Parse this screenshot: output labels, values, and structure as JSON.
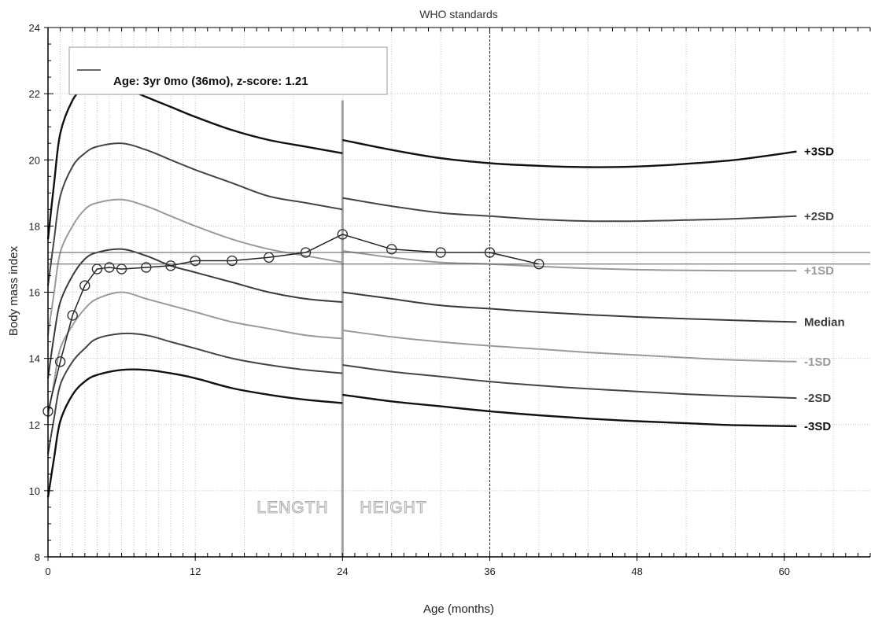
{
  "chart_data": {
    "type": "line",
    "title": "WHO standards",
    "xlabel": "Age (months)",
    "ylabel": "Body mass index",
    "xlim": [
      0,
      67
    ],
    "ylim": [
      8,
      24
    ],
    "xticks": [
      0,
      12,
      24,
      36,
      48,
      60
    ],
    "yticks": [
      8,
      10,
      12,
      14,
      16,
      18,
      20,
      22,
      24
    ],
    "grid": true,
    "legend": {
      "position": "top-left",
      "entries": [
        "Age: 3yr 0mo (36mo), z-score: 1.21"
      ]
    },
    "annotations": {
      "region_left": "LENGTH",
      "region_right": "HEIGHT",
      "divider_x": 24,
      "marker_x": 36
    },
    "reference_curves": [
      {
        "label": "+3SD",
        "color": "#111111",
        "length": {
          "x": [
            0,
            0.5,
            1,
            2,
            3,
            4,
            6,
            8,
            10,
            12,
            15,
            18,
            21,
            24
          ],
          "y": [
            17.6,
            19.3,
            20.8,
            21.8,
            22.2,
            22.3,
            22.2,
            21.9,
            21.6,
            21.3,
            20.9,
            20.6,
            20.4,
            20.2
          ]
        },
        "height": {
          "x": [
            24,
            28,
            32,
            36,
            40,
            44,
            48,
            52,
            56,
            61
          ],
          "y": [
            20.6,
            20.3,
            20.05,
            19.9,
            19.82,
            19.78,
            19.8,
            19.88,
            20.0,
            20.25
          ]
        }
      },
      {
        "label": "+2SD",
        "color": "#444444",
        "length": {
          "x": [
            0,
            0.5,
            1,
            2,
            3,
            4,
            6,
            8,
            10,
            12,
            15,
            18,
            21,
            24
          ],
          "y": [
            16.2,
            17.6,
            18.9,
            19.8,
            20.2,
            20.4,
            20.5,
            20.3,
            20.0,
            19.7,
            19.3,
            18.9,
            18.7,
            18.5
          ]
        },
        "height": {
          "x": [
            24,
            28,
            32,
            36,
            40,
            44,
            48,
            52,
            56,
            61
          ],
          "y": [
            18.85,
            18.6,
            18.4,
            18.3,
            18.2,
            18.15,
            18.15,
            18.18,
            18.22,
            18.3
          ]
        }
      },
      {
        "label": "+1SD",
        "color": "#9a9a9a",
        "length": {
          "x": [
            0,
            0.5,
            1,
            2,
            3,
            4,
            6,
            8,
            10,
            12,
            15,
            18,
            21,
            24
          ],
          "y": [
            14.7,
            16.0,
            17.2,
            18.0,
            18.5,
            18.7,
            18.8,
            18.6,
            18.3,
            18.0,
            17.6,
            17.3,
            17.1,
            16.9
          ]
        },
        "height": {
          "x": [
            24,
            28,
            32,
            36,
            40,
            44,
            48,
            52,
            56,
            61
          ],
          "y": [
            17.25,
            17.05,
            16.9,
            16.85,
            16.78,
            16.72,
            16.68,
            16.66,
            16.65,
            16.65
          ]
        }
      },
      {
        "label": "Median",
        "color": "#3a3a3a",
        "length": {
          "x": [
            0,
            0.5,
            1,
            2,
            3,
            4,
            6,
            8,
            10,
            12,
            15,
            18,
            21,
            24
          ],
          "y": [
            13.4,
            14.7,
            15.7,
            16.5,
            17.0,
            17.2,
            17.3,
            17.1,
            16.8,
            16.6,
            16.3,
            16.0,
            15.8,
            15.7
          ]
        },
        "height": {
          "x": [
            24,
            28,
            32,
            36,
            40,
            44,
            48,
            52,
            56,
            61
          ],
          "y": [
            16.0,
            15.8,
            15.6,
            15.5,
            15.4,
            15.32,
            15.25,
            15.2,
            15.15,
            15.1
          ]
        }
      },
      {
        "label": "-1SD",
        "color": "#9a9a9a",
        "length": {
          "x": [
            0,
            0.5,
            1,
            2,
            3,
            4,
            6,
            8,
            10,
            12,
            15,
            18,
            21,
            24
          ],
          "y": [
            12.2,
            13.3,
            14.3,
            15.0,
            15.5,
            15.8,
            16.0,
            15.8,
            15.6,
            15.4,
            15.1,
            14.9,
            14.7,
            14.6
          ]
        },
        "height": {
          "x": [
            24,
            28,
            32,
            36,
            40,
            44,
            48,
            52,
            56,
            61
          ],
          "y": [
            14.85,
            14.65,
            14.5,
            14.38,
            14.28,
            14.18,
            14.1,
            14.02,
            13.95,
            13.9
          ]
        }
      },
      {
        "label": "-2SD",
        "color": "#444444",
        "length": {
          "x": [
            0,
            0.5,
            1,
            2,
            3,
            4,
            6,
            8,
            10,
            12,
            15,
            18,
            21,
            24
          ],
          "y": [
            11.1,
            12.2,
            13.2,
            13.9,
            14.3,
            14.6,
            14.75,
            14.7,
            14.5,
            14.3,
            14.0,
            13.8,
            13.65,
            13.55
          ]
        },
        "height": {
          "x": [
            24,
            28,
            32,
            36,
            40,
            44,
            48,
            52,
            56,
            61
          ],
          "y": [
            13.8,
            13.6,
            13.45,
            13.3,
            13.18,
            13.08,
            13.0,
            12.92,
            12.86,
            12.8
          ]
        }
      },
      {
        "label": "-3SD",
        "color": "#111111",
        "length": {
          "x": [
            0,
            0.5,
            1,
            2,
            3,
            4,
            6,
            8,
            10,
            12,
            15,
            18,
            21,
            24
          ],
          "y": [
            9.8,
            11.0,
            12.1,
            12.9,
            13.3,
            13.5,
            13.65,
            13.65,
            13.55,
            13.4,
            13.1,
            12.9,
            12.75,
            12.65
          ]
        },
        "height": {
          "x": [
            24,
            28,
            32,
            36,
            40,
            44,
            48,
            52,
            56,
            61
          ],
          "y": [
            12.9,
            12.7,
            12.55,
            12.4,
            12.28,
            12.18,
            12.1,
            12.04,
            11.98,
            11.95
          ]
        }
      }
    ],
    "series": [
      {
        "x": [
          0,
          1,
          2,
          3,
          4,
          5,
          6,
          8,
          10,
          12,
          15,
          18,
          21,
          24,
          28,
          32,
          36,
          40
        ],
        "y": [
          12.4,
          13.9,
          15.3,
          16.2,
          16.7,
          16.75,
          16.7,
          16.75,
          16.8,
          16.95,
          16.95,
          17.05,
          17.2,
          17.75,
          17.3,
          17.2,
          17.2,
          16.85
        ]
      }
    ],
    "horizontal_lines": [
      17.2,
      16.85
    ]
  }
}
